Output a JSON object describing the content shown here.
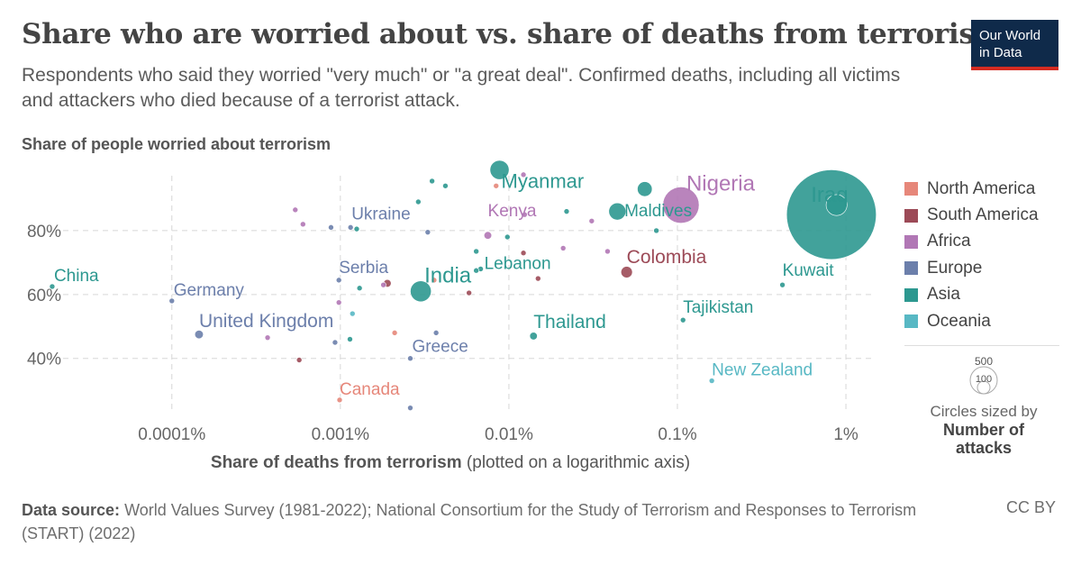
{
  "header": {
    "title": "Share who are worried about vs. share of deaths from terrorism",
    "subtitle": "Respondents who said they worried \"very much\" or \"a great deal\". Confirmed deaths, including all victims and attackers who died because of a terrorist attack.",
    "logo_line1": "Our World",
    "logo_line2": "in Data"
  },
  "footer": {
    "source_label": "Data source:",
    "source_text": "World Values Survey (1981-2022); National Consortium for the Study of Terrorism and Responses to Terrorism (START) (2022)",
    "license": "CC BY"
  },
  "chart_data": {
    "type": "scatter",
    "ylabel": "Share of people worried about terrorism",
    "xlabel_bold": "Share of deaths from terrorism",
    "xlabel_rest": "(plotted on a logarithmic axis)",
    "x_scale": "log",
    "x_ticks": [
      {
        "value": 0.0001,
        "label": "0.0001%"
      },
      {
        "value": 0.001,
        "label": "0.001%"
      },
      {
        "value": 0.01,
        "label": "0.01%"
      },
      {
        "value": 0.1,
        "label": "0.1%"
      },
      {
        "value": 1,
        "label": "1%"
      }
    ],
    "y_ticks": [
      {
        "value": 40,
        "label": "40%"
      },
      {
        "value": 60,
        "label": "60%"
      },
      {
        "value": 80,
        "label": "80%"
      }
    ],
    "xlim": [
      2e-05,
      1.5
    ],
    "ylim": [
      23,
      100
    ],
    "grid": true,
    "legend_position": "right",
    "regions": [
      {
        "name": "North America",
        "color": "#e6877a"
      },
      {
        "name": "South America",
        "color": "#9c4a57"
      },
      {
        "name": "Africa",
        "color": "#b177b5"
      },
      {
        "name": "Europe",
        "color": "#6c7fab"
      },
      {
        "name": "Asia",
        "color": "#2d9890"
      },
      {
        "name": "Oceania",
        "color": "#58b8c4"
      }
    ],
    "size_legend": {
      "title": "Circles sized by",
      "variable": "Number of attacks",
      "values": [
        500,
        100
      ]
    },
    "points": [
      {
        "label": "Iraq",
        "region": "Asia",
        "x": 0.82,
        "y": 85,
        "attacks": 5500
      },
      {
        "label": "",
        "region": "Asia",
        "x": 0.88,
        "y": 88,
        "attacks": 300
      },
      {
        "label": "Nigeria",
        "region": "Africa",
        "x": 0.105,
        "y": 88,
        "attacks": 900
      },
      {
        "label": "Myanmar",
        "region": "Asia",
        "x": 0.0088,
        "y": 99,
        "attacks": 250
      },
      {
        "label": "Maldives",
        "region": "Asia",
        "x": 0.075,
        "y": 80,
        "attacks": 2
      },
      {
        "label": "",
        "region": "Asia",
        "x": 0.064,
        "y": 93,
        "attacks": 150
      },
      {
        "label": "",
        "region": "Asia",
        "x": 0.044,
        "y": 86,
        "attacks": 200
      },
      {
        "label": "Kenya",
        "region": "Africa",
        "x": 0.0075,
        "y": 78.5,
        "attacks": 40
      },
      {
        "label": "Colombia",
        "region": "South America",
        "x": 0.05,
        "y": 67,
        "attacks": 90
      },
      {
        "label": "Kuwait",
        "region": "Asia",
        "x": 0.42,
        "y": 63,
        "attacks": 2
      },
      {
        "label": "Tajikistan",
        "region": "Asia",
        "x": 0.108,
        "y": 52,
        "attacks": 3
      },
      {
        "label": "New Zealand",
        "region": "Oceania",
        "x": 0.16,
        "y": 33,
        "attacks": 3
      },
      {
        "label": "Thailand",
        "region": "Asia",
        "x": 0.014,
        "y": 47,
        "attacks": 40
      },
      {
        "label": "India",
        "region": "Asia",
        "x": 0.003,
        "y": 61,
        "attacks": 300
      },
      {
        "label": "Lebanon",
        "region": "Asia",
        "x": 0.0068,
        "y": 68,
        "attacks": 5
      },
      {
        "label": "Serbia",
        "region": "Europe",
        "x": 0.00098,
        "y": 64.5,
        "attacks": 3
      },
      {
        "label": "Ukraine",
        "region": "Europe",
        "x": 0.00115,
        "y": 81,
        "attacks": 6
      },
      {
        "label": "Germany",
        "region": "Europe",
        "x": 0.0001,
        "y": 58,
        "attacks": 10
      },
      {
        "label": "China",
        "region": "Asia",
        "x": 1.95e-05,
        "y": 62.5,
        "attacks": 6
      },
      {
        "label": "United Kingdom",
        "region": "Europe",
        "x": 0.000145,
        "y": 47.5,
        "attacks": 50
      },
      {
        "label": "Greece",
        "region": "Europe",
        "x": 0.0026,
        "y": 40,
        "attacks": 6
      },
      {
        "label": "Canada",
        "region": "North America",
        "x": 0.00099,
        "y": 27,
        "attacks": 8
      },
      {
        "label": "",
        "region": "South America",
        "x": 0.0019,
        "y": 63.5,
        "attacks": 40
      },
      {
        "label": "",
        "region": "Africa",
        "x": 0.0018,
        "y": 63,
        "attacks": 3
      },
      {
        "label": "",
        "region": "Europe",
        "x": 0.0033,
        "y": 79.5,
        "attacks": 3
      },
      {
        "label": "",
        "region": "Asia",
        "x": 0.0029,
        "y": 89,
        "attacks": 3
      },
      {
        "label": "",
        "region": "Asia",
        "x": 0.0035,
        "y": 95.5,
        "attacks": 12
      },
      {
        "label": "",
        "region": "Asia",
        "x": 0.0042,
        "y": 94,
        "attacks": 3
      },
      {
        "label": "",
        "region": "North America",
        "x": 0.0084,
        "y": 94,
        "attacks": 5
      },
      {
        "label": "",
        "region": "Africa",
        "x": 0.0122,
        "y": 97.5,
        "attacks": 3
      },
      {
        "label": "",
        "region": "Africa",
        "x": 0.0124,
        "y": 85,
        "attacks": 3
      },
      {
        "label": "",
        "region": "Asia",
        "x": 0.0098,
        "y": 78,
        "attacks": 3
      },
      {
        "label": "",
        "region": "Asia",
        "x": 0.0064,
        "y": 73.5,
        "attacks": 3
      },
      {
        "label": "",
        "region": "South America",
        "x": 0.0122,
        "y": 73,
        "attacks": 3
      },
      {
        "label": "",
        "region": "Africa",
        "x": 0.021,
        "y": 74.5,
        "attacks": 3
      },
      {
        "label": "",
        "region": "Asia",
        "x": 0.022,
        "y": 86,
        "attacks": 3
      },
      {
        "label": "",
        "region": "Africa",
        "x": 0.031,
        "y": 83,
        "attacks": 3
      },
      {
        "label": "",
        "region": "Africa",
        "x": 0.0385,
        "y": 73.5,
        "attacks": 4
      },
      {
        "label": "",
        "region": "Asia",
        "x": 0.0064,
        "y": 67.5,
        "attacks": 3
      },
      {
        "label": "",
        "region": "South America",
        "x": 0.0058,
        "y": 60.5,
        "attacks": 6
      },
      {
        "label": "",
        "region": "South America",
        "x": 0.0149,
        "y": 65,
        "attacks": 3
      },
      {
        "label": "",
        "region": "North America",
        "x": 0.0036,
        "y": 64.5,
        "attacks": 3
      },
      {
        "label": "",
        "region": "Africa",
        "x": 0.00054,
        "y": 86.5,
        "attacks": 3
      },
      {
        "label": "",
        "region": "Africa",
        "x": 0.0006,
        "y": 82,
        "attacks": 3
      },
      {
        "label": "",
        "region": "Europe",
        "x": 0.00088,
        "y": 81,
        "attacks": 5
      },
      {
        "label": "",
        "region": "Asia",
        "x": 0.00125,
        "y": 80.5,
        "attacks": 3
      },
      {
        "label": "",
        "region": "Asia",
        "x": 0.0013,
        "y": 62,
        "attacks": 3
      },
      {
        "label": "",
        "region": "Africa",
        "x": 0.00098,
        "y": 57.5,
        "attacks": 3
      },
      {
        "label": "",
        "region": "Oceania",
        "x": 0.00118,
        "y": 54,
        "attacks": 3
      },
      {
        "label": "",
        "region": "Asia",
        "x": 0.00114,
        "y": 46,
        "attacks": 3
      },
      {
        "label": "",
        "region": "Europe",
        "x": 0.00093,
        "y": 45,
        "attacks": 3
      },
      {
        "label": "",
        "region": "Africa",
        "x": 0.00037,
        "y": 46.5,
        "attacks": 8
      },
      {
        "label": "",
        "region": "South America",
        "x": 0.00057,
        "y": 39.5,
        "attacks": 3
      },
      {
        "label": "",
        "region": "North America",
        "x": 0.0021,
        "y": 48,
        "attacks": 3
      },
      {
        "label": "",
        "region": "Europe",
        "x": 0.0037,
        "y": 48,
        "attacks": 3
      },
      {
        "label": "",
        "region": "Europe",
        "x": 0.0026,
        "y": 24.5,
        "attacks": 3
      }
    ]
  }
}
